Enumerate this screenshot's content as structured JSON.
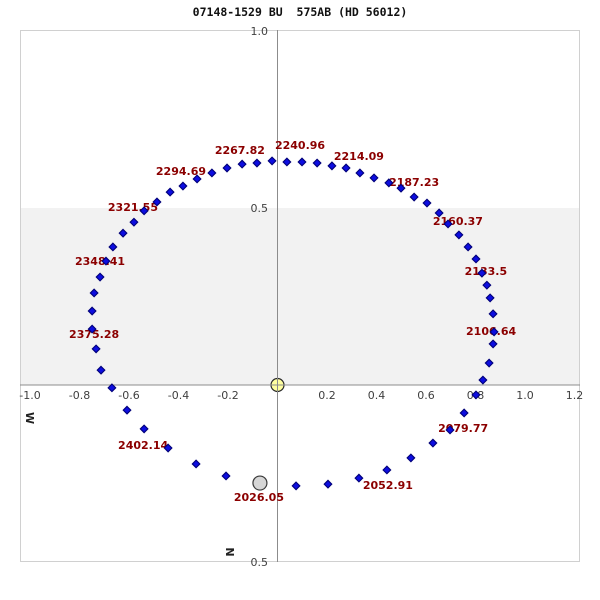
{
  "title": "07148-1529 BU  575AB (HD 56012)",
  "chart_data": {
    "type": "scatter",
    "title": "07148-1529 BU  575AB (HD 56012)",
    "x_axis": {
      "range": [
        -1.04,
        1.22
      ],
      "direction_label": "W",
      "ticks": [
        {
          "v": -1.0,
          "label": "-1.0"
        },
        {
          "v": -0.8,
          "label": "-0.8"
        },
        {
          "v": -0.6,
          "label": "-0.6"
        },
        {
          "v": -0.4,
          "label": "-0.4"
        },
        {
          "v": -0.2,
          "label": "-0.2"
        },
        {
          "v": 0.2,
          "label": "0.2"
        },
        {
          "v": 0.4,
          "label": "0.4"
        },
        {
          "v": 0.6,
          "label": "0.6"
        },
        {
          "v": 0.8,
          "label": "0.8"
        },
        {
          "v": 1.0,
          "label": "1.0"
        },
        {
          "v": 1.2,
          "label": "1.2"
        }
      ]
    },
    "y_axis": {
      "range": [
        -0.5,
        1.0
      ],
      "direction_label": "N",
      "ticks": [
        {
          "v": 1.0,
          "label": "1.0"
        },
        {
          "v": 0.5,
          "label": "0.5"
        },
        {
          "v": -0.5,
          "label": "0.5"
        }
      ]
    },
    "shaded_band_y": [
      0.0,
      0.5
    ],
    "grid": false,
    "legend": "none",
    "primary_star": {
      "x": 0,
      "y": 0
    },
    "start_marker": {
      "x": -0.071,
      "y": -0.277,
      "epoch": "2026.05"
    },
    "orbit_points": [
      [
        0.075,
        -0.285
      ],
      [
        0.204,
        -0.28
      ],
      [
        0.329,
        -0.263
      ],
      [
        0.442,
        -0.24
      ],
      [
        0.539,
        -0.206
      ],
      [
        0.628,
        -0.164
      ],
      [
        0.697,
        -0.127
      ],
      [
        0.754,
        -0.079
      ],
      [
        0.802,
        -0.028
      ],
      [
        0.83,
        0.014
      ],
      [
        0.855,
        0.062
      ],
      [
        0.871,
        0.116
      ],
      [
        0.875,
        0.15
      ],
      [
        0.871,
        0.201
      ],
      [
        0.859,
        0.246
      ],
      [
        0.846,
        0.282
      ],
      [
        0.826,
        0.316
      ],
      [
        0.802,
        0.356
      ],
      [
        0.77,
        0.39
      ],
      [
        0.733,
        0.424
      ],
      [
        0.689,
        0.455
      ],
      [
        0.653,
        0.486
      ],
      [
        0.604,
        0.514
      ],
      [
        0.552,
        0.531
      ],
      [
        0.499,
        0.556
      ],
      [
        0.45,
        0.571
      ],
      [
        0.39,
        0.585
      ],
      [
        0.333,
        0.599
      ],
      [
        0.277,
        0.613
      ],
      [
        0.22,
        0.619
      ],
      [
        0.16,
        0.627
      ],
      [
        0.099,
        0.63
      ],
      [
        0.038,
        0.63
      ],
      [
        -0.022,
        0.633
      ],
      [
        -0.083,
        0.627
      ],
      [
        -0.143,
        0.624
      ],
      [
        -0.204,
        0.613
      ],
      [
        -0.265,
        0.599
      ],
      [
        -0.325,
        0.582
      ],
      [
        -0.382,
        0.562
      ],
      [
        -0.434,
        0.545
      ],
      [
        -0.487,
        0.517
      ],
      [
        -0.539,
        0.492
      ],
      [
        -0.58,
        0.46
      ],
      [
        -0.624,
        0.429
      ],
      [
        -0.665,
        0.39
      ],
      [
        -0.693,
        0.35
      ],
      [
        -0.717,
        0.305
      ],
      [
        -0.741,
        0.26
      ],
      [
        -0.749,
        0.209
      ],
      [
        -0.749,
        0.158
      ],
      [
        -0.733,
        0.102
      ],
      [
        -0.713,
        0.042
      ],
      [
        -0.669,
        -0.008
      ],
      [
        -0.608,
        -0.071
      ],
      [
        -0.539,
        -0.124
      ],
      [
        -0.442,
        -0.178
      ],
      [
        -0.329,
        -0.223
      ],
      [
        -0.208,
        -0.257
      ]
    ],
    "epoch_labels": [
      {
        "text": "2026.05",
        "x": -0.075,
        "y": -0.316
      },
      {
        "text": "2052.91",
        "x": 0.446,
        "y": -0.282
      },
      {
        "text": "2079.77",
        "x": 0.75,
        "y": -0.121
      },
      {
        "text": "2106.64",
        "x": 0.863,
        "y": 0.153
      },
      {
        "text": "2133.5",
        "x": 0.842,
        "y": 0.322
      },
      {
        "text": "2160.37",
        "x": 0.729,
        "y": 0.463
      },
      {
        "text": "2187.23",
        "x": 0.552,
        "y": 0.573
      },
      {
        "text": "2214.09",
        "x": 0.329,
        "y": 0.647
      },
      {
        "text": "2240.96",
        "x": 0.091,
        "y": 0.678
      },
      {
        "text": "2267.82",
        "x": -0.152,
        "y": 0.664
      },
      {
        "text": "2294.69",
        "x": -0.39,
        "y": 0.605
      },
      {
        "text": "2321.55",
        "x": -0.584,
        "y": 0.503
      },
      {
        "text": "2348.41",
        "x": -0.717,
        "y": 0.35
      },
      {
        "text": "2375.28",
        "x": -0.741,
        "y": 0.144
      },
      {
        "text": "2402.14",
        "x": -0.543,
        "y": -0.169
      }
    ],
    "colors": {
      "background": "#ffffff",
      "band": "#f2f2f2",
      "border": "#d0d0d0",
      "axis": "#8c8c8c",
      "tick_text": "#3f3f3f",
      "epoch_text": "#8b0000",
      "point_fill": "#0d0de0",
      "point_edge": "#000078",
      "primary_fill": "#ffffa0",
      "primary_edge": "#2a2a2a",
      "start_fill": "#d6d6d6",
      "start_edge": "#3a3a3a",
      "direction_text": "#222222"
    }
  }
}
